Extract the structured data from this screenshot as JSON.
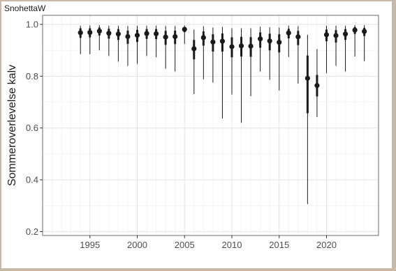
{
  "chart_data": {
    "type": "scatter",
    "title": "SnohettaW",
    "xlabel": "",
    "ylabel": "Sommeroverlevelse kalv",
    "xlim": [
      1990.0,
      2025.5
    ],
    "ylim": [
      0.185,
      1.035
    ],
    "x_ticks": [
      1995,
      2000,
      2005,
      2010,
      2015,
      2020
    ],
    "x_tick_labels": [
      "1995",
      "2000",
      "2005",
      "2010",
      "2015",
      "2020"
    ],
    "y_ticks": [
      0.2,
      0.4,
      0.6,
      0.8,
      1.0
    ],
    "y_tick_labels": [
      "0.2",
      "0.4",
      "0.6",
      "0.8",
      "1.0"
    ],
    "grid": true,
    "legend": "none",
    "point_color": "#1a1a1a",
    "points": [
      {
        "x": 1994,
        "y": 0.968,
        "inner": [
          0.948,
          0.985
        ],
        "outer": [
          0.885,
          0.995
        ]
      },
      {
        "x": 1995,
        "y": 0.969,
        "inner": [
          0.95,
          0.985
        ],
        "outer": [
          0.885,
          0.996
        ]
      },
      {
        "x": 1996,
        "y": 0.974,
        "inner": [
          0.957,
          0.988
        ],
        "outer": [
          0.9,
          0.997
        ]
      },
      {
        "x": 1997,
        "y": 0.966,
        "inner": [
          0.945,
          0.983
        ],
        "outer": [
          0.878,
          0.995
        ]
      },
      {
        "x": 1998,
        "y": 0.963,
        "inner": [
          0.94,
          0.982
        ],
        "outer": [
          0.856,
          0.995
        ]
      },
      {
        "x": 1999,
        "y": 0.953,
        "inner": [
          0.925,
          0.976
        ],
        "outer": [
          0.84,
          0.994
        ]
      },
      {
        "x": 2000,
        "y": 0.958,
        "inner": [
          0.932,
          0.979
        ],
        "outer": [
          0.848,
          0.995
        ]
      },
      {
        "x": 2001,
        "y": 0.965,
        "inner": [
          0.944,
          0.982
        ],
        "outer": [
          0.878,
          0.995
        ]
      },
      {
        "x": 2002,
        "y": 0.964,
        "inner": [
          0.943,
          0.982
        ],
        "outer": [
          0.873,
          0.995
        ]
      },
      {
        "x": 2003,
        "y": 0.951,
        "inner": [
          0.921,
          0.975
        ],
        "outer": [
          0.829,
          0.994
        ]
      },
      {
        "x": 2004,
        "y": 0.953,
        "inner": [
          0.924,
          0.976
        ],
        "outer": [
          0.818,
          0.994
        ]
      },
      {
        "x": 2005,
        "y": 0.981,
        "inner": [
          0.97,
          0.99
        ],
        "outer": [
          0.925,
          0.996
        ]
      },
      {
        "x": 2006,
        "y": 0.906,
        "inner": [
          0.865,
          0.94
        ],
        "outer": [
          0.731,
          0.98
        ]
      },
      {
        "x": 2007,
        "y": 0.949,
        "inner": [
          0.918,
          0.973
        ],
        "outer": [
          0.788,
          0.993
        ]
      },
      {
        "x": 2008,
        "y": 0.932,
        "inner": [
          0.895,
          0.962
        ],
        "outer": [
          0.775,
          0.988
        ]
      },
      {
        "x": 2009,
        "y": 0.935,
        "inner": [
          0.895,
          0.965
        ],
        "outer": [
          0.637,
          0.99
        ]
      },
      {
        "x": 2010,
        "y": 0.914,
        "inner": [
          0.873,
          0.95
        ],
        "outer": [
          0.729,
          0.985
        ]
      },
      {
        "x": 2011,
        "y": 0.917,
        "inner": [
          0.876,
          0.952
        ],
        "outer": [
          0.62,
          0.985
        ]
      },
      {
        "x": 2012,
        "y": 0.916,
        "inner": [
          0.875,
          0.951
        ],
        "outer": [
          0.723,
          0.985
        ]
      },
      {
        "x": 2013,
        "y": 0.944,
        "inner": [
          0.91,
          0.969
        ],
        "outer": [
          0.818,
          0.991
        ]
      },
      {
        "x": 2014,
        "y": 0.936,
        "inner": [
          0.9,
          0.964
        ],
        "outer": [
          0.786,
          0.989
        ]
      },
      {
        "x": 2015,
        "y": 0.931,
        "inner": [
          0.892,
          0.962
        ],
        "outer": [
          0.745,
          0.988
        ]
      },
      {
        "x": 2016,
        "y": 0.967,
        "inner": [
          0.946,
          0.983
        ],
        "outer": [
          0.874,
          0.995
        ]
      },
      {
        "x": 2017,
        "y": 0.952,
        "inner": [
          0.92,
          0.975
        ],
        "outer": [
          0.771,
          0.993
        ]
      },
      {
        "x": 2018,
        "y": 0.792,
        "inner": [
          0.657,
          0.88
        ],
        "outer": [
          0.306,
          0.96
        ]
      },
      {
        "x": 2019,
        "y": 0.764,
        "inner": [
          0.722,
          0.805
        ],
        "outer": [
          0.642,
          0.905
        ]
      },
      {
        "x": 2020,
        "y": 0.96,
        "inner": [
          0.935,
          0.98
        ],
        "outer": [
          0.812,
          0.995
        ]
      },
      {
        "x": 2021,
        "y": 0.957,
        "inner": [
          0.93,
          0.978
        ],
        "outer": [
          0.84,
          0.995
        ]
      },
      {
        "x": 2022,
        "y": 0.963,
        "inner": [
          0.94,
          0.982
        ],
        "outer": [
          0.818,
          0.995
        ]
      },
      {
        "x": 2023,
        "y": 0.978,
        "inner": [
          0.963,
          0.99
        ],
        "outer": [
          0.876,
          0.997
        ]
      },
      {
        "x": 2024,
        "y": 0.973,
        "inner": [
          0.955,
          0.987
        ],
        "outer": [
          0.858,
          0.997
        ]
      }
    ]
  }
}
